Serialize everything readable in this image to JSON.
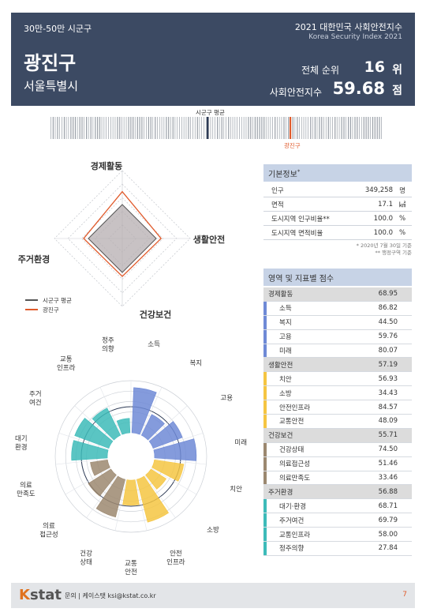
{
  "header": {
    "group": "30만-50만 시군구",
    "title": "광진구",
    "subtitle": "서울특별시",
    "index_title": "2021 대한민국 사회안전지수",
    "index_title_en": "Korea Security Index 2021",
    "rank_label": "전체 순위",
    "rank_value": "16",
    "rank_unit": "위",
    "score_label": "사회안전지수",
    "score_value": "59.68",
    "score_unit": "점"
  },
  "barcode": {
    "avg_label": "시군구 평균",
    "self_label": "광진구"
  },
  "radar": {
    "axes": [
      "경제활동",
      "생활안전",
      "건강보건",
      "주거환경"
    ],
    "legend": [
      {
        "name": "시군구 평균",
        "color": "#555555"
      },
      {
        "name": "광진구",
        "color": "#e05a2b"
      }
    ]
  },
  "chart_data": [
    {
      "type": "radar",
      "axes": [
        "경제활동",
        "생활안전",
        "건강보건",
        "주거환경"
      ],
      "series": [
        {
          "name": "시군구 평균",
          "values": [
            50,
            50,
            50,
            50
          ]
        },
        {
          "name": "광진구",
          "values": [
            68.95,
            57.19,
            55.71,
            56.88
          ]
        }
      ],
      "ylim": [
        0,
        100
      ]
    },
    {
      "type": "polar-bar",
      "categories": [
        "소득",
        "복지",
        "고용",
        "미래",
        "치안",
        "소방",
        "안전인프라",
        "교통안전",
        "건강상태",
        "의료접근성",
        "의료만족도",
        "대기환경",
        "주거여건",
        "교통인프라",
        "정주의향"
      ],
      "values": [
        86.82,
        44.5,
        59.76,
        80.07,
        56.93,
        34.43,
        84.57,
        48.09,
        74.5,
        51.46,
        33.46,
        68.71,
        69.79,
        58.0,
        27.84
      ],
      "colors": [
        "#6f8ad6",
        "#6f8ad6",
        "#6f8ad6",
        "#6f8ad6",
        "#f5c542",
        "#f5c542",
        "#f5c542",
        "#f5c542",
        "#9c8870",
        "#9c8870",
        "#9c8870",
        "#3dbbb9",
        "#3dbbb9",
        "#3dbbb9",
        "#3dbbb9"
      ],
      "labels": [
        "소득",
        "복지",
        "고용",
        "미래",
        "치안",
        "소방",
        "안전\n인프라",
        "교통\n안전",
        "건강\n상태",
        "의료\n접근성",
        "의료\n만족도",
        "대기\n환경",
        "주거\n여건",
        "교통\n인프라",
        "정주\n의향"
      ],
      "ylim": [
        0,
        100
      ]
    }
  ],
  "info": {
    "title": "기본정보",
    "title_mark": "*",
    "rows": [
      {
        "label": "인구",
        "value": "349,258",
        "unit": "명"
      },
      {
        "label": "면적",
        "value": "17.1",
        "unit": "㎢"
      },
      {
        "label": "도시지역 인구비율**",
        "value": "100.0",
        "unit": "%"
      },
      {
        "label": "도시지역 면적비율",
        "value": "100.0",
        "unit": "%"
      }
    ],
    "note1": "* 2020년 7월 30일 기준",
    "note2": "** 행정구역 기준"
  },
  "scores": {
    "title": "영역 및 지표별 점수",
    "rows": [
      {
        "type": "domain",
        "label": "경제활동",
        "value": "68.95"
      },
      {
        "type": "sub",
        "label": "소득",
        "value": "86.82",
        "color": "#6f8ad6"
      },
      {
        "type": "sub",
        "label": "복지",
        "value": "44.50",
        "color": "#6f8ad6"
      },
      {
        "type": "sub",
        "label": "고용",
        "value": "59.76",
        "color": "#6f8ad6"
      },
      {
        "type": "sub",
        "label": "미래",
        "value": "80.07",
        "color": "#6f8ad6"
      },
      {
        "type": "domain",
        "label": "생활안전",
        "value": "57.19"
      },
      {
        "type": "sub",
        "label": "치안",
        "value": "56.93",
        "color": "#f5c542"
      },
      {
        "type": "sub",
        "label": "소방",
        "value": "34.43",
        "color": "#f5c542"
      },
      {
        "type": "sub",
        "label": "안전인프라",
        "value": "84.57",
        "color": "#f5c542"
      },
      {
        "type": "sub",
        "label": "교통안전",
        "value": "48.09",
        "color": "#f5c542"
      },
      {
        "type": "domain",
        "label": "건강보건",
        "value": "55.71"
      },
      {
        "type": "sub",
        "label": "건강상태",
        "value": "74.50",
        "color": "#9c8870"
      },
      {
        "type": "sub",
        "label": "의료접근성",
        "value": "51.46",
        "color": "#9c8870"
      },
      {
        "type": "sub",
        "label": "의료만족도",
        "value": "33.46",
        "color": "#9c8870"
      },
      {
        "type": "domain",
        "label": "주거환경",
        "value": "56.88"
      },
      {
        "type": "sub",
        "label": "대기·환경",
        "value": "68.71",
        "color": "#3dbbb9"
      },
      {
        "type": "sub",
        "label": "주거여건",
        "value": "69.79",
        "color": "#3dbbb9"
      },
      {
        "type": "sub",
        "label": "교통인프라",
        "value": "58.00",
        "color": "#3dbbb9"
      },
      {
        "type": "sub",
        "label": "정주의향",
        "value": "27.84",
        "color": "#3dbbb9"
      }
    ]
  },
  "footer": {
    "logo_k": "K",
    "logo_rest": "stat",
    "contact": "문의 | 케이스탯 ksi@kstat.co.kr",
    "page": "7"
  }
}
